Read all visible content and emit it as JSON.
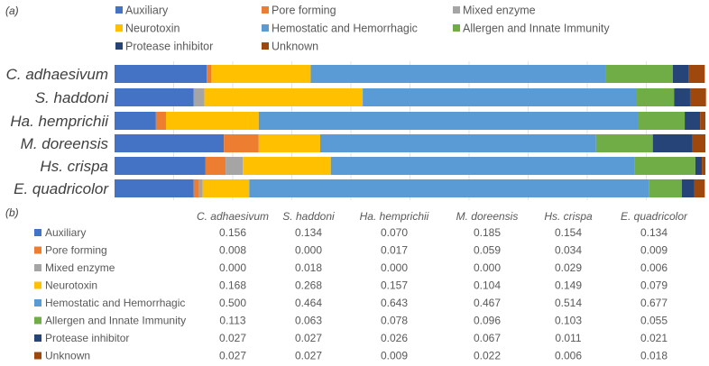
{
  "chart_data": {
    "type": "bar",
    "orientation": "horizontal",
    "stacked": true,
    "panel_labels": [
      "(a)",
      "(b)"
    ],
    "categories": [
      "C. adhaesivum",
      "S. haddoni",
      "Ha. hemprichii",
      "M. doreensis",
      "Hs. crispa",
      "E. quadricolor"
    ],
    "xlim": [
      0,
      1
    ],
    "grid": true,
    "legend_position": "top",
    "series": [
      {
        "name": "Auxiliary",
        "color": "#4472C4",
        "values": [
          0.156,
          0.134,
          0.07,
          0.185,
          0.154,
          0.134
        ]
      },
      {
        "name": "Pore forming",
        "color": "#ED7D31",
        "values": [
          0.008,
          0.0,
          0.017,
          0.059,
          0.034,
          0.009
        ]
      },
      {
        "name": "Mixed enzyme",
        "color": "#A5A5A5",
        "values": [
          0.0,
          0.018,
          0.0,
          0.0,
          0.029,
          0.006
        ]
      },
      {
        "name": "Neurotoxin",
        "color": "#FFC000",
        "values": [
          0.168,
          0.268,
          0.157,
          0.104,
          0.149,
          0.079
        ]
      },
      {
        "name": "Hemostatic and Hemorrhagic",
        "color": "#5B9BD5",
        "values": [
          0.5,
          0.464,
          0.643,
          0.467,
          0.514,
          0.677
        ]
      },
      {
        "name": "Allergen and Innate Immunity",
        "color": "#70AD47",
        "values": [
          0.113,
          0.063,
          0.078,
          0.096,
          0.103,
          0.055
        ]
      },
      {
        "name": "Protease inhibitor",
        "color": "#264478",
        "values": [
          0.027,
          0.027,
          0.026,
          0.067,
          0.011,
          0.021
        ]
      },
      {
        "name": "Unknown",
        "color": "#9E480E",
        "values": [
          0.027,
          0.027,
          0.009,
          0.022,
          0.006,
          0.018
        ]
      }
    ],
    "table_values_text": [
      [
        "0.156",
        "0.134",
        "0.070",
        "0.185",
        "0.154",
        "0.134"
      ],
      [
        "0.008",
        "0.000",
        "0.017",
        "0.059",
        "0.034",
        "0.009"
      ],
      [
        "0.000",
        "0.018",
        "0.000",
        "0.000",
        "0.029",
        "0.006"
      ],
      [
        "0.168",
        "0.268",
        "0.157",
        "0.104",
        "0.149",
        "0.079"
      ],
      [
        "0.500",
        "0.464",
        "0.643",
        "0.467",
        "0.514",
        "0.677"
      ],
      [
        "0.113",
        "0.063",
        "0.078",
        "0.096",
        "0.103",
        "0.055"
      ],
      [
        "0.027",
        "0.027",
        "0.026",
        "0.067",
        "0.011",
        "0.021"
      ],
      [
        "0.027",
        "0.027",
        "0.009",
        "0.022",
        "0.006",
        "0.018"
      ]
    ]
  }
}
